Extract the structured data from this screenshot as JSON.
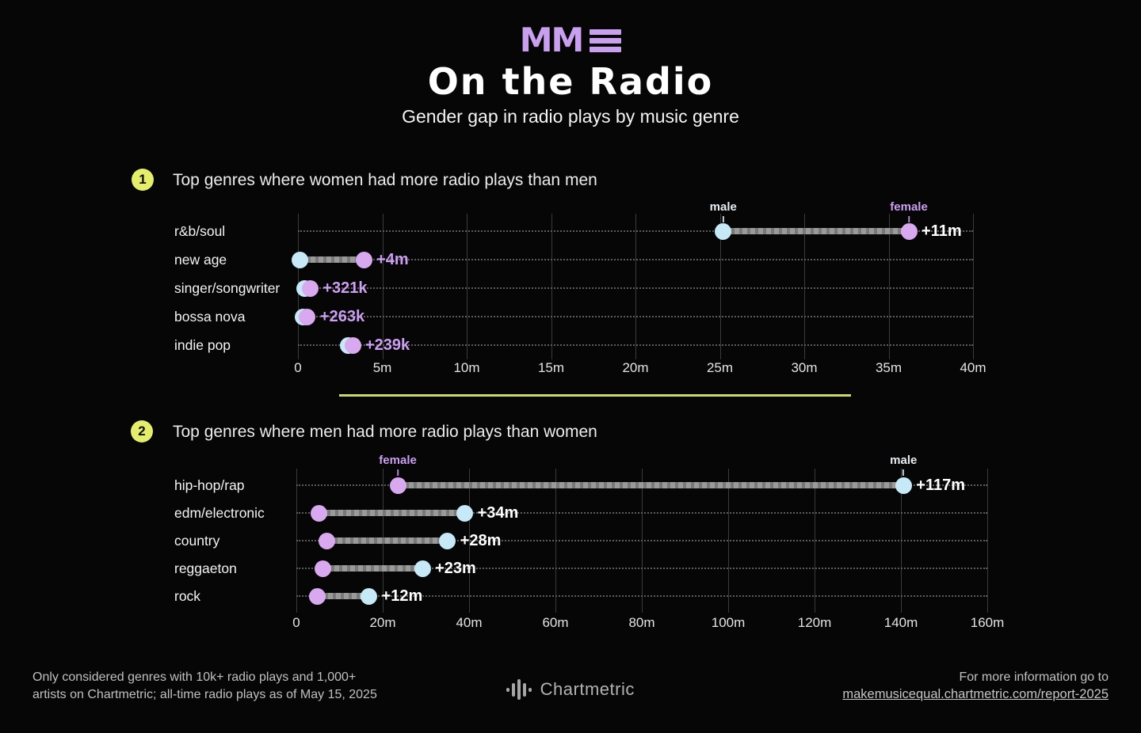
{
  "colors": {
    "background": "#060606",
    "accent_purple": "#cb9ff2",
    "female_dot": "#d9a9f0",
    "male_dot": "#c7e8f7",
    "male_label": "#e6eef2",
    "badge_yellow": "#e4ee6b",
    "divider_yellow": "#ccd963",
    "bar_gray": "#9a9a9a",
    "white": "#ffffff"
  },
  "header": {
    "logo_text": "MM",
    "title": "On the Radio",
    "subtitle": "Gender gap in radio plays by music genre"
  },
  "sections": [
    {
      "badge": "1",
      "title": "Top genres where women had more radio plays than men"
    },
    {
      "badge": "2",
      "title": "Top genres where men had more radio plays than women"
    }
  ],
  "chart_data": [
    {
      "type": "dumbbell",
      "title": "Top genres where women had more radio plays than men",
      "x_unit": "all-time radio plays (m = millions)",
      "xlim": [
        0,
        40
      ],
      "grid": true,
      "ticks": [
        {
          "v": 0,
          "label": "0"
        },
        {
          "v": 5,
          "label": "5m"
        },
        {
          "v": 10,
          "label": "10m"
        },
        {
          "v": 15,
          "label": "15m"
        },
        {
          "v": 20,
          "label": "20m"
        },
        {
          "v": 25,
          "label": "25m"
        },
        {
          "v": 30,
          "label": "30m"
        },
        {
          "v": 35,
          "label": "35m"
        },
        {
          "v": 40,
          "label": "40m"
        }
      ],
      "rows": [
        {
          "genre": "r&b/soul",
          "male": 25.2,
          "female": 36.2,
          "diff_label": "+11m",
          "diff_color": "#ffffff"
        },
        {
          "genre": "new age",
          "male": 0.1,
          "female": 3.9,
          "diff_label": "+4m",
          "diff_color": "#cb9ff2"
        },
        {
          "genre": "singer/songwriter",
          "male": 0.4,
          "female": 0.72,
          "diff_label": "+321k",
          "diff_color": "#cb9ff2"
        },
        {
          "genre": "bossa nova",
          "male": 0.3,
          "female": 0.56,
          "diff_label": "+263k",
          "diff_color": "#cb9ff2"
        },
        {
          "genre": "indie pop",
          "male": 3.0,
          "female": 3.24,
          "diff_label": "+239k",
          "diff_color": "#cb9ff2"
        }
      ],
      "annotations": [
        {
          "text": "male",
          "row": 0,
          "anchor": "male"
        },
        {
          "text": "female",
          "row": 0,
          "anchor": "female"
        }
      ]
    },
    {
      "type": "dumbbell",
      "title": "Top genres where men had more radio plays than women",
      "x_unit": "all-time radio plays (m = millions)",
      "xlim": [
        0,
        160
      ],
      "grid": true,
      "ticks": [
        {
          "v": 0,
          "label": "0"
        },
        {
          "v": 20,
          "label": "20m"
        },
        {
          "v": 40,
          "label": "40m"
        },
        {
          "v": 60,
          "label": "60m"
        },
        {
          "v": 80,
          "label": "80m"
        },
        {
          "v": 100,
          "label": "100m"
        },
        {
          "v": 120,
          "label": "120m"
        },
        {
          "v": 140,
          "label": "140m"
        },
        {
          "v": 160,
          "label": "160m"
        }
      ],
      "rows": [
        {
          "genre": "hip-hop/rap",
          "male": 140.6,
          "female": 23.5,
          "diff_label": "+117m",
          "diff_color": "#ffffff"
        },
        {
          "genre": "edm/electronic",
          "male": 39.0,
          "female": 5.3,
          "diff_label": "+34m",
          "diff_color": "#ffffff"
        },
        {
          "genre": "country",
          "male": 35.0,
          "female": 7.0,
          "diff_label": "+28m",
          "diff_color": "#ffffff"
        },
        {
          "genre": "reggaeton",
          "male": 29.2,
          "female": 6.2,
          "diff_label": "+23m",
          "diff_color": "#ffffff"
        },
        {
          "genre": "rock",
          "male": 16.8,
          "female": 4.8,
          "diff_label": "+12m",
          "diff_color": "#ffffff"
        }
      ],
      "annotations": [
        {
          "text": "female",
          "row": 0,
          "anchor": "female"
        },
        {
          "text": "male",
          "row": 0,
          "anchor": "male"
        }
      ]
    }
  ],
  "footer": {
    "note_line1": "Only considered genres with 10k+ radio plays and 1,000+",
    "note_line2": "artists on Chartmetric; all-time radio plays as of May 15, 2025",
    "brand": "Chartmetric",
    "info_text": "For more information go to",
    "link": "makemusicequal.chartmetric.com/report-2025"
  }
}
